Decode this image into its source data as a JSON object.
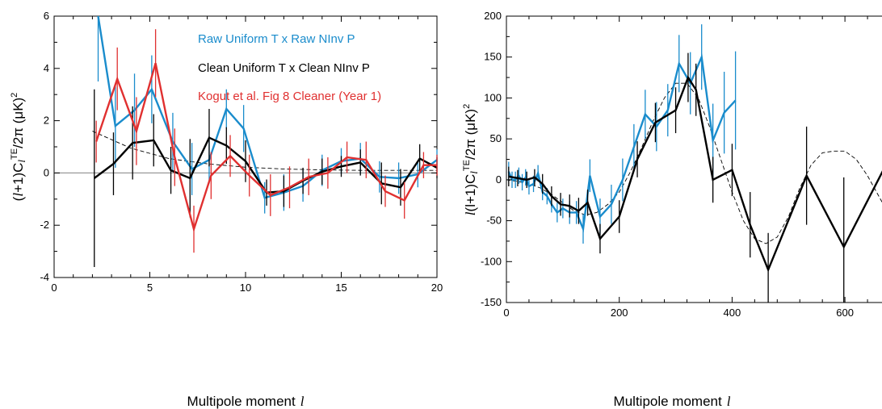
{
  "colors": {
    "blue": "#1a8ccc",
    "black": "#000000",
    "red": "#e03030",
    "zero_line": "#999999"
  },
  "chart_data": [
    {
      "type": "line",
      "xlim": [
        0,
        20
      ],
      "ylim": [
        -4,
        6
      ],
      "xticks": [
        0,
        5,
        10,
        15,
        20
      ],
      "yticks": [
        -4,
        -2,
        0,
        2,
        4,
        6
      ],
      "xlabel_prefix": "Multipole moment",
      "xlabel_symbol": "l",
      "ylabel": {
        "a": "(",
        "b": "l",
        "c": "+1)C",
        "d": "l",
        "e": "TE",
        "f": "/2π (μK)",
        "g": "2"
      },
      "legend": [
        "Raw Uniform T x Raw NInv P",
        "Clean Uniform T x Clean NInv P",
        "Kogut et al. Fig 8 Cleaner (Year 1)"
      ],
      "zero_line": true,
      "series": [
        {
          "name": "Raw Uniform T x Raw NInv P",
          "color": "blue",
          "x": [
            2.3,
            3.2,
            4.2,
            5.1,
            6.2,
            7.2,
            8.1,
            9.0,
            9.9,
            11.0,
            12.0,
            13.0,
            14.0,
            15.0,
            16.0,
            17.0,
            18.0,
            19.0,
            20.0
          ],
          "y": [
            6.5,
            1.8,
            2.4,
            3.2,
            1.2,
            0.15,
            0.5,
            2.45,
            1.7,
            -0.95,
            -0.75,
            -0.5,
            0.1,
            0.45,
            0.55,
            -0.15,
            -0.2,
            -0.05,
            0.5
          ],
          "err": [
            3.0,
            1.6,
            1.4,
            1.3,
            1.1,
            1.0,
            0.9,
            0.75,
            0.9,
            0.6,
            0.7,
            0.6,
            0.6,
            0.5,
            0.6,
            0.6,
            0.6,
            0.5,
            0.4
          ]
        },
        {
          "name": "Clean Uniform T x Clean NInv P",
          "color": "black",
          "x": [
            2.1,
            3.1,
            4.1,
            5.2,
            6.1,
            7.1,
            8.1,
            9.0,
            10.0,
            11.1,
            12.0,
            13.0,
            14.0,
            15.0,
            16.0,
            17.1,
            18.1,
            19.1,
            20.0
          ],
          "y": [
            -0.2,
            0.35,
            1.15,
            1.25,
            0.1,
            -0.2,
            1.35,
            1.05,
            0.45,
            -0.75,
            -0.7,
            -0.3,
            0.05,
            0.25,
            0.4,
            -0.4,
            -0.55,
            0.55,
            0.2
          ],
          "err": [
            3.4,
            1.2,
            1.4,
            1.0,
            0.9,
            1.5,
            1.1,
            0.7,
            0.8,
            0.5,
            0.6,
            0.5,
            0.5,
            0.4,
            0.5,
            0.8,
            0.7,
            0.55,
            0.4
          ]
        },
        {
          "name": "Kogut et al. Fig 8 Cleaner (Year 1)",
          "color": "red",
          "x": [
            2.2,
            3.3,
            4.3,
            5.3,
            6.3,
            7.3,
            8.2,
            9.2,
            10.2,
            11.3,
            12.3,
            13.3,
            14.3,
            15.3,
            16.3,
            17.3,
            18.3,
            19.3,
            20.0
          ],
          "y": [
            1.2,
            3.6,
            1.6,
            4.2,
            0.6,
            -2.15,
            -0.1,
            0.65,
            -0.1,
            -0.85,
            -0.55,
            -0.15,
            0.0,
            0.6,
            0.5,
            -0.7,
            -1.05,
            0.3,
            0.3
          ],
          "err": [
            0.8,
            1.2,
            1.3,
            1.3,
            1.1,
            0.9,
            0.9,
            0.8,
            0.8,
            0.8,
            0.8,
            0.7,
            0.6,
            0.6,
            0.7,
            0.6,
            0.7,
            0.5,
            0.4
          ]
        }
      ],
      "model": {
        "x": [
          2,
          4,
          6,
          8,
          10,
          12,
          14,
          16,
          18,
          20
        ],
        "y": [
          1.6,
          0.95,
          0.55,
          0.35,
          0.22,
          0.15,
          0.12,
          0.1,
          0.1,
          0.1
        ]
      }
    },
    {
      "type": "line",
      "xlim": [
        0,
        680
      ],
      "ylim": [
        -150,
        200
      ],
      "xticks": [
        0,
        200,
        400,
        600
      ],
      "yticks": [
        -150,
        -100,
        -50,
        0,
        50,
        100,
        150,
        200
      ],
      "xlabel_prefix": "Multipole moment",
      "xlabel_symbol": "l",
      "ylabel": {
        "a": "",
        "b": "l",
        "c": "(l+1)C",
        "d": "l",
        "e": "TE",
        "f": "/2π (μK)",
        "g": "2"
      },
      "series": [
        {
          "name": "blue",
          "color": "blue",
          "x": [
            4,
            10,
            16,
            22,
            28,
            34,
            40,
            48,
            56,
            64,
            72,
            80,
            90,
            100,
            112,
            124,
            136,
            148,
            166,
            186,
            206,
            226,
            246,
            266,
            286,
            306,
            326,
            346,
            366,
            386,
            406
          ],
          "y": [
            10,
            0,
            0,
            5,
            -3,
            3,
            -8,
            -5,
            8,
            -15,
            -20,
            -30,
            -40,
            -35,
            -40,
            -40,
            -60,
            5,
            -45,
            -30,
            0,
            40,
            80,
            65,
            85,
            142,
            118,
            150,
            48,
            82,
            97
          ],
          "err": [
            12,
            10,
            10,
            10,
            10,
            10,
            10,
            10,
            10,
            10,
            10,
            10,
            12,
            12,
            14,
            14,
            18,
            20,
            22,
            24,
            26,
            28,
            30,
            30,
            32,
            35,
            38,
            40,
            45,
            50,
            60
          ]
        },
        {
          "name": "black",
          "color": "black",
          "x": [
            4,
            20,
            36,
            50,
            64,
            80,
            96,
            112,
            128,
            144,
            166,
            200,
            232,
            264,
            300,
            322,
            336,
            366,
            400,
            432,
            464,
            532,
            598,
            668
          ],
          "y": [
            4,
            2,
            0,
            3,
            -5,
            -20,
            -30,
            -32,
            -38,
            -28,
            -72,
            -45,
            25,
            70,
            85,
            125,
            110,
            0,
            12,
            -55,
            -110,
            5,
            -82,
            12
          ],
          "err": [
            12,
            10,
            10,
            10,
            12,
            12,
            14,
            14,
            16,
            16,
            18,
            20,
            22,
            24,
            28,
            30,
            32,
            28,
            32,
            40,
            45,
            60,
            85,
            165
          ]
        }
      ],
      "model": {
        "x": [
          0,
          20,
          40,
          60,
          80,
          100,
          120,
          140,
          160,
          180,
          200,
          220,
          240,
          260,
          280,
          300,
          320,
          340,
          360,
          380,
          400,
          420,
          440,
          460,
          480,
          500,
          520,
          540,
          560,
          580,
          600,
          620,
          640,
          660,
          680
        ],
        "y": [
          0,
          -2,
          -5,
          -10,
          -18,
          -28,
          -38,
          -43,
          -40,
          -30,
          -15,
          10,
          40,
          72,
          100,
          118,
          118,
          100,
          65,
          25,
          -15,
          -50,
          -72,
          -78,
          -70,
          -45,
          -10,
          18,
          33,
          35,
          35,
          25,
          5,
          -20,
          -45
        ]
      }
    }
  ]
}
